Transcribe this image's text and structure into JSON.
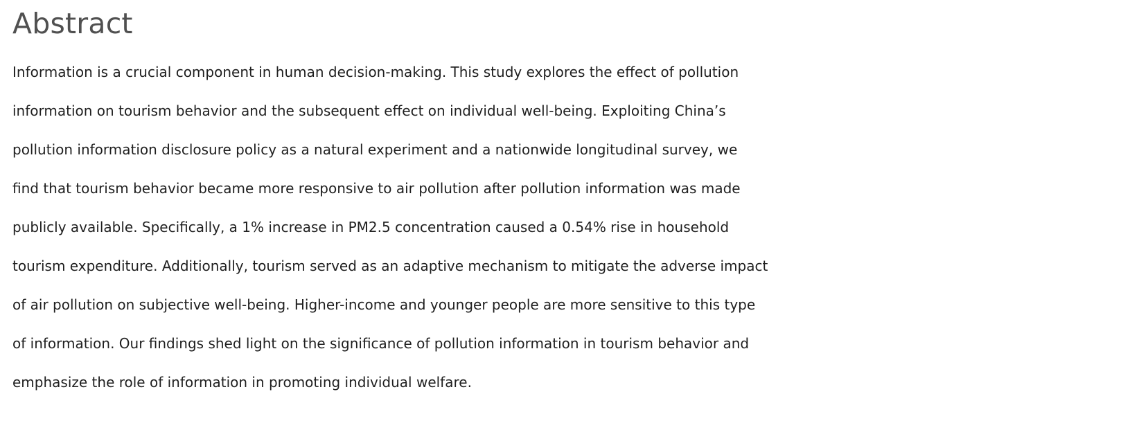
{
  "abstract": {
    "heading": "Abstract",
    "lines": [
      "Information is a crucial component in human decision-making. This study explores the effect of pollution",
      "information on tourism behavior and the subsequent effect on individual well-being. Exploiting China’s",
      "pollution information disclosure policy as a natural experiment and a nationwide longitudinal survey, we",
      "find that tourism behavior became more responsive to air pollution after pollution information was made",
      "publicly available. Specifically, a 1% increase in PM2.5 concentration caused a 0.54% rise in household",
      "tourism expenditure. Additionally, tourism served as an adaptive mechanism to mitigate the adverse impact",
      "of air pollution on subjective well-being. Higher-income and younger people are more sensitive to this type",
      "of information. Our findings shed light on the significance of pollution information in tourism behavior and",
      "emphasize the role of information in promoting individual welfare."
    ]
  }
}
